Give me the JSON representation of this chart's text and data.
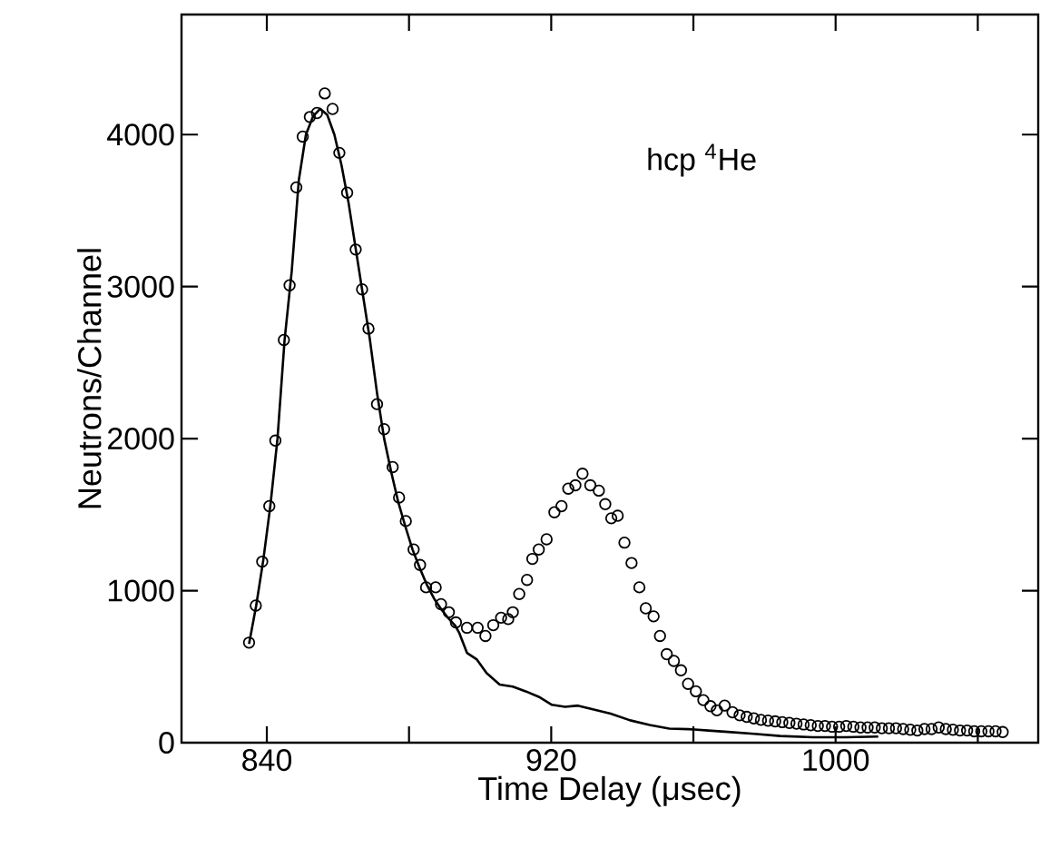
{
  "chart_data": {
    "type": "scatter",
    "xlabel": "Time Delay (μsec)",
    "ylabel": "Neutrons/Channel",
    "annotations": [
      "hcp $^{4}$He"
    ],
    "xlim": [
      816,
      1057
    ],
    "ylim": [
      0,
      4790
    ],
    "xticks": [
      840,
      {
        "value": 880,
        "label": null
      },
      920,
      {
        "value": 960,
        "label": null
      },
      1000,
      {
        "value": 1040,
        "label": null
      }
    ],
    "yticks": [
      0,
      1000,
      2000,
      3000,
      4000
    ],
    "series": [
      {
        "marker": "circle",
        "color": "#000000",
        "x": [
          835.0,
          836.9,
          838.7,
          840.7,
          842.4,
          844.8,
          846.4,
          848.3,
          850.1,
          852.1,
          854.1,
          856.3,
          858.5,
          860.4,
          862.6,
          865.0,
          866.8,
          868.6,
          871.0,
          873.0,
          875.4,
          877.2,
          879.1,
          881.3,
          883.1,
          884.8,
          887.5,
          889.0,
          891.2,
          893.2,
          896.3,
          899.3,
          901.5,
          903.7,
          905.9,
          907.9,
          909.2,
          911.0,
          913.2,
          914.7,
          916.5,
          918.7,
          920.9,
          922.9,
          924.8,
          926.8,
          928.8,
          931.0,
          933.4,
          935.2,
          936.9,
          938.7,
          940.6,
          942.6,
          944.8,
          946.6,
          948.8,
          950.6,
          952.5,
          954.5,
          956.5,
          958.5,
          960.7,
          962.8,
          964.8,
          966.6,
          968.8,
          971,
          973,
          975,
          977,
          979,
          981,
          983,
          985,
          987,
          989,
          991,
          993,
          995,
          997,
          999,
          1001,
          1003,
          1005,
          1007,
          1009,
          1011,
          1013,
          1015,
          1017,
          1019,
          1021,
          1023,
          1025,
          1027,
          1029,
          1031,
          1033,
          1035,
          1037,
          1039,
          1041,
          1043,
          1045,
          1047
        ],
        "values": [
          658,
          902,
          1191,
          1556,
          1987,
          2649,
          3009,
          3653,
          3987,
          4116,
          4142,
          4271,
          4169,
          3880,
          3618,
          3244,
          2982,
          2724,
          2227,
          2062,
          1813,
          1613,
          1458,
          1271,
          1169,
          1022,
          1022,
          911,
          858,
          791,
          756,
          756,
          702,
          773,
          822,
          813,
          858,
          978,
          1071,
          1209,
          1271,
          1338,
          1516,
          1556,
          1671,
          1693,
          1769,
          1693,
          1658,
          1569,
          1476,
          1493,
          1316,
          1182,
          1022,
          884,
          831,
          702,
          582,
          538,
          476,
          387,
          338,
          280,
          240,
          213,
          244,
          200,
          180,
          170,
          160,
          150,
          145,
          140,
          135,
          130,
          125,
          120,
          115,
          110,
          110,
          105,
          105,
          110,
          105,
          100,
          100,
          100,
          95,
          95,
          95,
          90,
          85,
          80,
          90,
          90,
          100,
          90,
          85,
          80,
          80,
          75,
          75,
          75,
          75,
          70
        ]
      },
      {
        "type": "line",
        "line_style": "solid",
        "color": "#000000",
        "x": [
          835,
          837,
          839,
          841,
          843,
          845,
          847,
          849,
          851,
          853,
          855,
          857,
          859,
          861,
          863,
          865,
          867,
          869,
          871,
          873,
          875,
          877,
          879,
          881,
          883,
          885,
          887,
          889,
          891,
          893,
          894.1,
          896.3,
          899.1,
          901.8,
          905.5,
          909.2,
          912.8,
          916.5,
          920.2,
          923.9,
          927.5,
          931.2,
          936.7,
          942.2,
          947.7,
          953.2,
          958.7,
          964.2,
          969.7,
          977.1,
          984.4,
          993.6,
          1002.8,
          1012
        ],
        "values": [
          650,
          900,
          1200,
          1560,
          2000,
          2650,
          3100,
          3700,
          4000,
          4120,
          4170,
          4130,
          4000,
          3800,
          3550,
          3250,
          2950,
          2650,
          2300,
          2000,
          1780,
          1580,
          1420,
          1270,
          1150,
          1040,
          950,
          880,
          820,
          770,
          724,
          591,
          547,
          458,
          382,
          369,
          338,
          302,
          249,
          236,
          244,
          222,
          191,
          147,
          116,
          93,
          89,
          80,
          71,
          58,
          44,
          36,
          36,
          40
        ]
      }
    ]
  }
}
